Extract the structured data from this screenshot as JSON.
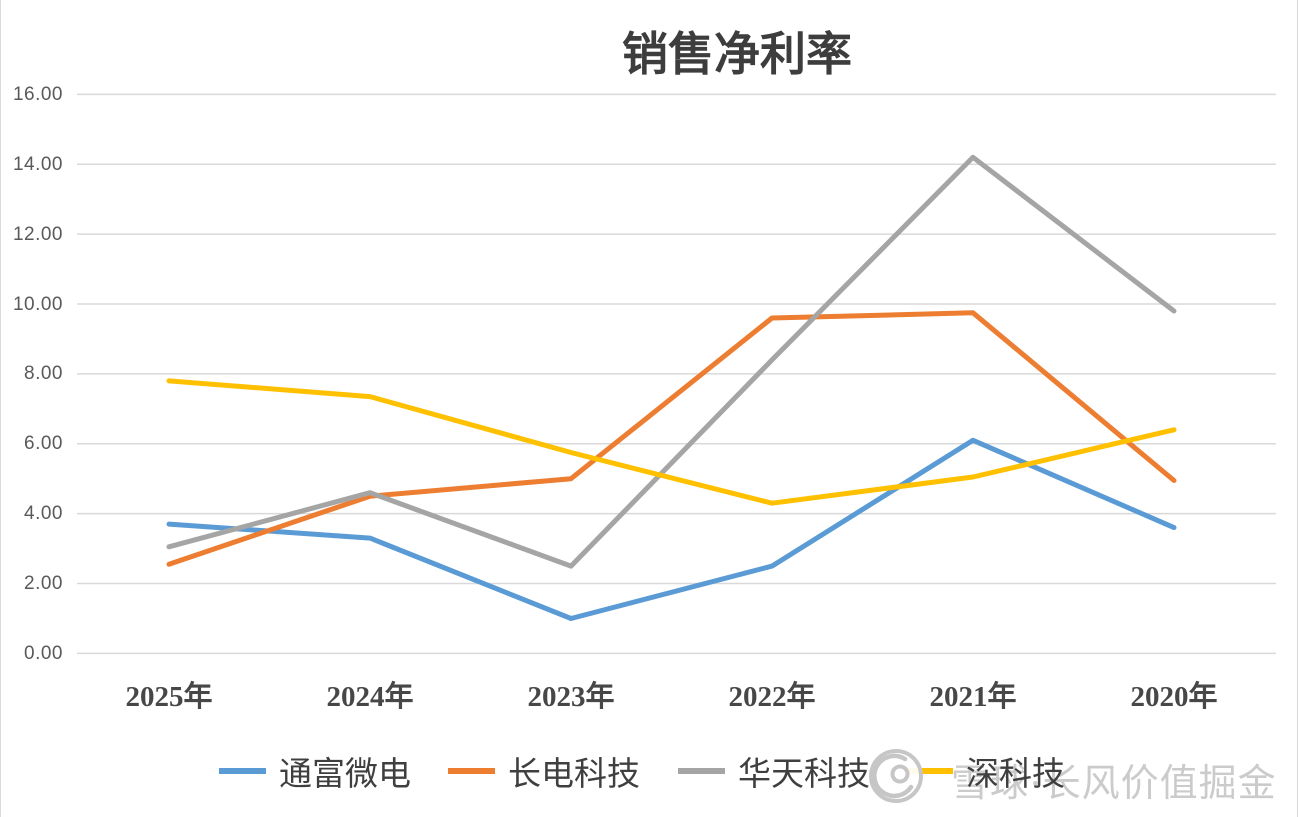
{
  "chart_data": {
    "type": "line",
    "title": "销售净利率",
    "categories": [
      "2025年",
      "2024年",
      "2023年",
      "2022年",
      "2021年",
      "2020年"
    ],
    "series": [
      {
        "name": "通富微电",
        "color": "#5B9BD5",
        "values": [
          3.7,
          3.3,
          1.0,
          2.5,
          6.1,
          3.6
        ]
      },
      {
        "name": "长电科技",
        "color": "#ED7D31",
        "values": [
          2.55,
          4.5,
          5.0,
          9.6,
          9.75,
          4.95
        ]
      },
      {
        "name": "华天科技",
        "color": "#A5A5A5",
        "values": [
          3.05,
          4.6,
          2.5,
          8.4,
          14.2,
          9.8
        ]
      },
      {
        "name": "深科技",
        "color": "#FFC000",
        "values": [
          7.8,
          7.35,
          5.75,
          4.3,
          5.05,
          6.4
        ]
      }
    ],
    "ylim": [
      0,
      16
    ],
    "yticks": [
      "16.00",
      "14.00",
      "12.00",
      "10.00",
      "8.00",
      "6.00",
      "4.00",
      "2.00",
      "0.00"
    ],
    "ytick_values": [
      16,
      14,
      12,
      10,
      8,
      6,
      4,
      2,
      0
    ],
    "grid": true,
    "legend_position": "bottom",
    "gridline_color": "#D9D9D9"
  },
  "watermark": {
    "text": "雪球·长风价值掘金",
    "logo": "xueqiu-logo"
  }
}
